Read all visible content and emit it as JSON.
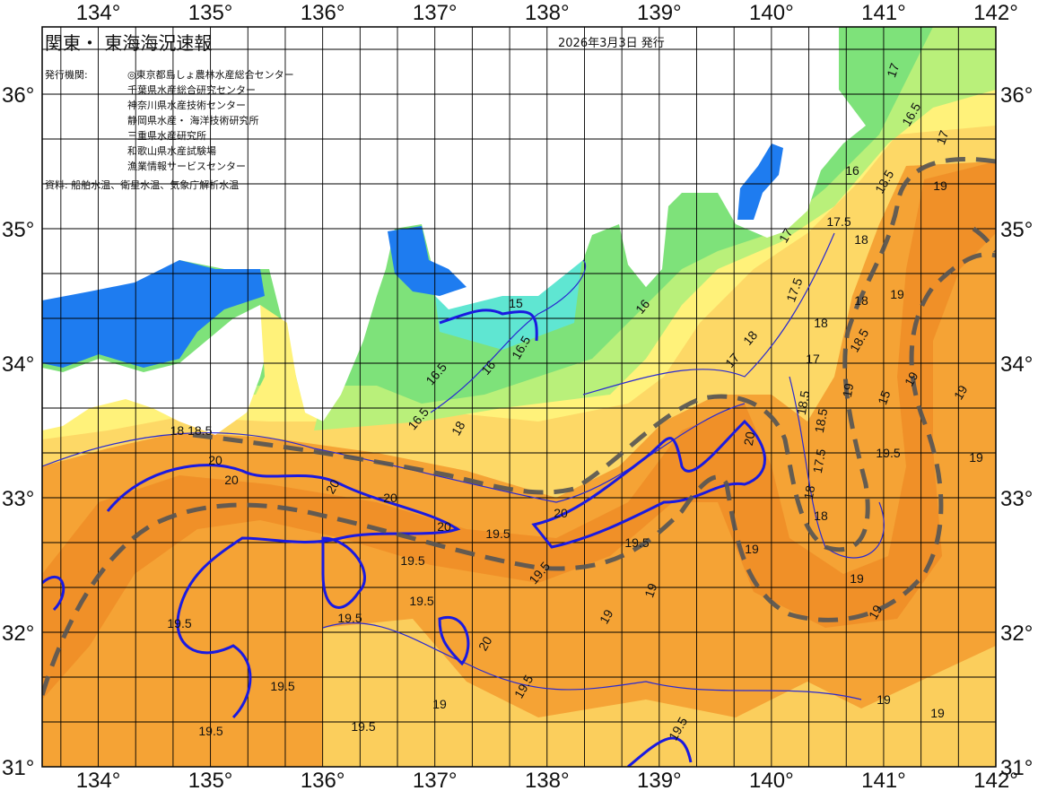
{
  "header": {
    "title": "関東・ 東海海況速報",
    "issue_date": "2026年3月3日 発行",
    "issuer_label": "発行機関:",
    "issuers": [
      "◎東京都島しょ農林水産総合センター",
      "千葉県水産総合研究センター",
      "神奈川県水産技術センター",
      "静岡県水産・ 海洋技術研究所",
      "三重県水産研究所",
      "和歌山県水産試験場",
      "漁業情報サービスセンター"
    ],
    "source": "資料: 船舶水温、衛星水温、気象庁解析水温"
  },
  "axes": {
    "longitude_labels": [
      "134°",
      "135°",
      "136°",
      "137°",
      "138°",
      "139°",
      "140°",
      "141°",
      "142°"
    ],
    "latitude_labels": [
      "36°",
      "35°",
      "34°",
      "33°",
      "32°",
      "31°"
    ],
    "lon_range": [
      133.5,
      142
    ],
    "lat_range": [
      31,
      36.5
    ]
  },
  "colors": {
    "land": "#ffffff",
    "sea_warm": "#f5a335",
    "sea_kuroshio": "#f09028",
    "sea_yellow": "#fdd866",
    "sea_lightyellow": "#fff27a",
    "sea_lightgreen": "#b9f07a",
    "sea_green": "#7ee27a",
    "sea_cyan": "#5fe6d2",
    "sea_blue": "#1e7cf0",
    "contour": "#2a2ad0",
    "contour_20": "#1a1ae0",
    "kuroshio_axis": "#555555"
  },
  "contour_labels": [
    "17",
    "16.5",
    "17",
    "16",
    "18.5",
    "19",
    "17.5",
    "17",
    "18",
    "17.5",
    "18",
    "19",
    "16",
    "15",
    "16.5",
    "16",
    "17",
    "17",
    "18",
    "18.5",
    "18",
    "19",
    "18.5",
    "19",
    "19",
    "15",
    "16.5",
    "18",
    "16.5",
    "18 18.5",
    "20",
    "20",
    "20",
    "20",
    "20",
    "20",
    "19.5",
    "19.5",
    "19.5",
    "19.5",
    "19.5",
    "19.5",
    "19.5",
    "19.5",
    "19.5",
    "19.5",
    "19",
    "19",
    "19",
    "19",
    "19",
    "20",
    "20",
    "19",
    "19.5",
    "19.5",
    "19",
    "19.5",
    "18.5",
    "18",
    "17.5",
    "18",
    "19",
    "19"
  ]
}
